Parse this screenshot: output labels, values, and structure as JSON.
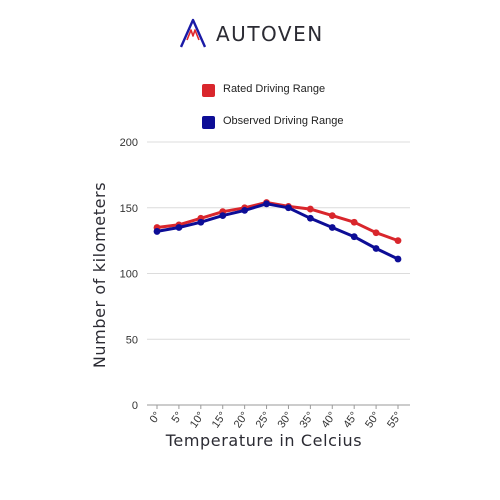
{
  "brand": {
    "name": "AUTOVEN",
    "logo_colors": {
      "primary": "#1a1aa6",
      "accent": "#e0262b"
    }
  },
  "chart_data": {
    "type": "line",
    "title": "",
    "xlabel": "Temperature in Celcius",
    "ylabel": "Number of kilometers",
    "categories": [
      "0°",
      "5°",
      "10°",
      "15°",
      "20°",
      "25°",
      "30°",
      "35°",
      "40°",
      "45°",
      "50°",
      "55°"
    ],
    "ylim": [
      0,
      200
    ],
    "yticks": [
      0,
      50,
      100,
      150,
      200
    ],
    "grid": true,
    "legend_position": "top",
    "series": [
      {
        "name": "Rated Driving Range",
        "color": "#d9262c",
        "values": [
          135,
          137,
          142,
          147,
          150,
          154,
          151,
          149,
          144,
          139,
          131,
          125
        ]
      },
      {
        "name": "Observed Driving Range",
        "color": "#0d0d96",
        "values": [
          132,
          135,
          139,
          144,
          148,
          153,
          150,
          142,
          135,
          128,
          119,
          111
        ]
      }
    ]
  }
}
